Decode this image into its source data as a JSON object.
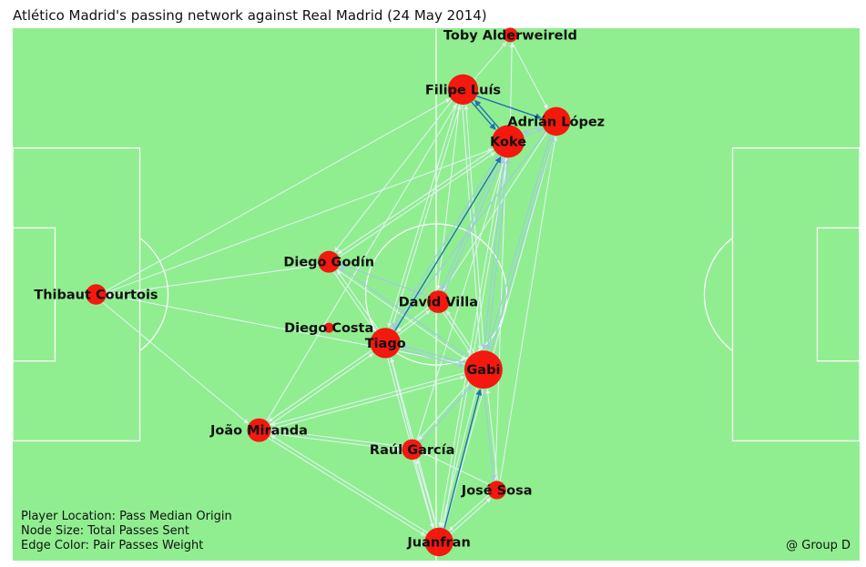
{
  "title": "Atlético Madrid's passing network against Real Madrid (24 May 2014)",
  "notes": {
    "line1": "Player Location: Pass Median Origin",
    "line2": "Node Size: Total Passes Sent",
    "line3": "Edge Color: Pair Passes Weight",
    "credit": "@ Group D"
  },
  "colors": {
    "pitch": "#90ee90",
    "lines": "#ffffff",
    "node": "#ff0000",
    "edge_light": "#e8f2fb",
    "edge_mid": "#9ecae1",
    "edge_dark": "#2171b5"
  },
  "chart_data": {
    "type": "network",
    "pitch": {
      "length": 120,
      "width": 80
    },
    "players": [
      {
        "name": "Toby Alderweireld",
        "x": 70.5,
        "y": 1.0,
        "passes": 4
      },
      {
        "name": "Filipe Luís",
        "x": 63.8,
        "y": 9.2,
        "passes": 30
      },
      {
        "name": "Adrián López",
        "x": 77.0,
        "y": 14.0,
        "passes": 26
      },
      {
        "name": "Koke",
        "x": 70.2,
        "y": 17.0,
        "passes": 36
      },
      {
        "name": "Diego Godín",
        "x": 44.8,
        "y": 35.1,
        "passes": 13
      },
      {
        "name": "Thibaut Courtois",
        "x": 11.8,
        "y": 40.0,
        "passes": 11
      },
      {
        "name": "David Villa",
        "x": 60.3,
        "y": 41.1,
        "passes": 14
      },
      {
        "name": "Diego Costa",
        "x": 44.8,
        "y": 45.0,
        "passes": 1
      },
      {
        "name": "Tiago",
        "x": 52.8,
        "y": 47.3,
        "passes": 30
      },
      {
        "name": "Gabi",
        "x": 66.7,
        "y": 51.3,
        "passes": 52
      },
      {
        "name": "João Miranda",
        "x": 34.9,
        "y": 60.4,
        "passes": 16
      },
      {
        "name": "Raúl García",
        "x": 56.6,
        "y": 63.3,
        "passes": 11
      },
      {
        "name": "José Sosa",
        "x": 68.6,
        "y": 69.4,
        "passes": 8
      },
      {
        "name": "Juanfran",
        "x": 60.4,
        "y": 77.2,
        "passes": 26
      }
    ],
    "edges": [
      {
        "from": "Toby Alderweireld",
        "to": "Adrián López",
        "weight": 1
      },
      {
        "from": "Filipe Luís",
        "to": "Toby Alderweireld",
        "weight": 1
      },
      {
        "from": "Filipe Luís",
        "to": "Koke",
        "weight": 5
      },
      {
        "from": "Koke",
        "to": "Filipe Luís",
        "weight": 4
      },
      {
        "from": "Filipe Luís",
        "to": "Adrián López",
        "weight": 4
      },
      {
        "from": "Adrián López",
        "to": "Koke",
        "weight": 3
      },
      {
        "from": "Koke",
        "to": "Adrián López",
        "weight": 3
      },
      {
        "from": "Koke",
        "to": "Toby Alderweireld",
        "weight": 1
      },
      {
        "from": "Koke",
        "to": "Gabi",
        "weight": 2
      },
      {
        "from": "Gabi",
        "to": "Koke",
        "weight": 3
      },
      {
        "from": "Tiago",
        "to": "Koke",
        "weight": 4
      },
      {
        "from": "Koke",
        "to": "Tiago",
        "weight": 2
      },
      {
        "from": "Gabi",
        "to": "Adrián López",
        "weight": 2
      },
      {
        "from": "Adrián López",
        "to": "Gabi",
        "weight": 2
      },
      {
        "from": "Juanfran",
        "to": "Gabi",
        "weight": 5
      },
      {
        "from": "Gabi",
        "to": "Juanfran",
        "weight": 1
      },
      {
        "from": "Gabi",
        "to": "Tiago",
        "weight": 2
      },
      {
        "from": "Tiago",
        "to": "Gabi",
        "weight": 2
      },
      {
        "from": "Gabi",
        "to": "Diego Godín",
        "weight": 2
      },
      {
        "from": "Diego Godín",
        "to": "Koke",
        "weight": 1
      },
      {
        "from": "Koke",
        "to": "Diego Godín",
        "weight": 1
      },
      {
        "from": "Diego Godín",
        "to": "Tiago",
        "weight": 1
      },
      {
        "from": "Tiago",
        "to": "Diego Godín",
        "weight": 1
      },
      {
        "from": "Thibaut Courtois",
        "to": "Filipe Luís",
        "weight": 1
      },
      {
        "from": "Thibaut Courtois",
        "to": "Koke",
        "weight": 1
      },
      {
        "from": "Thibaut Courtois",
        "to": "Diego Godín",
        "weight": 1
      },
      {
        "from": "Thibaut Courtois",
        "to": "João Miranda",
        "weight": 1
      },
      {
        "from": "Gabi",
        "to": "Thibaut Courtois",
        "weight": 1
      },
      {
        "from": "João Miranda",
        "to": "Filipe Luís",
        "weight": 1
      },
      {
        "from": "João Miranda",
        "to": "Tiago",
        "weight": 1
      },
      {
        "from": "Tiago",
        "to": "João Miranda",
        "weight": 1
      },
      {
        "from": "João Miranda",
        "to": "Raúl García",
        "weight": 1
      },
      {
        "from": "Raúl García",
        "to": "João Miranda",
        "weight": 1
      },
      {
        "from": "João Miranda",
        "to": "Juanfran",
        "weight": 1
      },
      {
        "from": "Juanfran",
        "to": "João Miranda",
        "weight": 1
      },
      {
        "from": "Gabi",
        "to": "João Miranda",
        "weight": 1
      },
      {
        "from": "Raúl García",
        "to": "Gabi",
        "weight": 2
      },
      {
        "from": "Gabi",
        "to": "Raúl García",
        "weight": 1
      },
      {
        "from": "Raúl García",
        "to": "Tiago",
        "weight": 1
      },
      {
        "from": "Raúl García",
        "to": "Juanfran",
        "weight": 1
      },
      {
        "from": "Juanfran",
        "to": "Raúl García",
        "weight": 1
      },
      {
        "from": "Juanfran",
        "to": "José Sosa",
        "weight": 1
      },
      {
        "from": "José Sosa",
        "to": "Juanfran",
        "weight": 1
      },
      {
        "from": "José Sosa",
        "to": "Gabi",
        "weight": 1
      },
      {
        "from": "Gabi",
        "to": "José Sosa",
        "weight": 2
      },
      {
        "from": "José Sosa",
        "to": "Adrián López",
        "weight": 1
      },
      {
        "from": "José Sosa",
        "to": "Raúl García",
        "weight": 1
      },
      {
        "from": "David Villa",
        "to": "Koke",
        "weight": 2
      },
      {
        "from": "Koke",
        "to": "David Villa",
        "weight": 2
      },
      {
        "from": "David Villa",
        "to": "Tiago",
        "weight": 1
      },
      {
        "from": "Tiago",
        "to": "David Villa",
        "weight": 1
      },
      {
        "from": "David Villa",
        "to": "Gabi",
        "weight": 1
      },
      {
        "from": "Gabi",
        "to": "David Villa",
        "weight": 1
      },
      {
        "from": "David Villa",
        "to": "Diego Godín",
        "weight": 3
      },
      {
        "from": "Filipe Luís",
        "to": "Diego Godín",
        "weight": 1
      },
      {
        "from": "Filipe Luís",
        "to": "David Villa",
        "weight": 1
      },
      {
        "from": "Filipe Luís",
        "to": "Gabi",
        "weight": 1
      },
      {
        "from": "Gabi",
        "to": "Filipe Luís",
        "weight": 1
      },
      {
        "from": "Filipe Luís",
        "to": "Tiago",
        "weight": 1
      },
      {
        "from": "Tiago",
        "to": "Filipe Luís",
        "weight": 1
      },
      {
        "from": "Adrián López",
        "to": "Tiago",
        "weight": 2
      },
      {
        "from": "Adrián López",
        "to": "David Villa",
        "weight": 1
      },
      {
        "from": "Tiago",
        "to": "Juanfran",
        "weight": 1
      },
      {
        "from": "Juanfran",
        "to": "Tiago",
        "weight": 1
      },
      {
        "from": "Juanfran",
        "to": "Koke",
        "weight": 1
      },
      {
        "from": "Koke",
        "to": "Juanfran",
        "weight": 1
      },
      {
        "from": "Juanfran",
        "to": "Adrián López",
        "weight": 1
      },
      {
        "from": "Raúl García",
        "to": "Koke",
        "weight": 1
      },
      {
        "from": "Koke",
        "to": "José Sosa",
        "weight": 1
      },
      {
        "from": "Diego Godín",
        "to": "Gabi",
        "weight": 1
      },
      {
        "from": "João Miranda",
        "to": "Gabi",
        "weight": 1
      }
    ]
  }
}
